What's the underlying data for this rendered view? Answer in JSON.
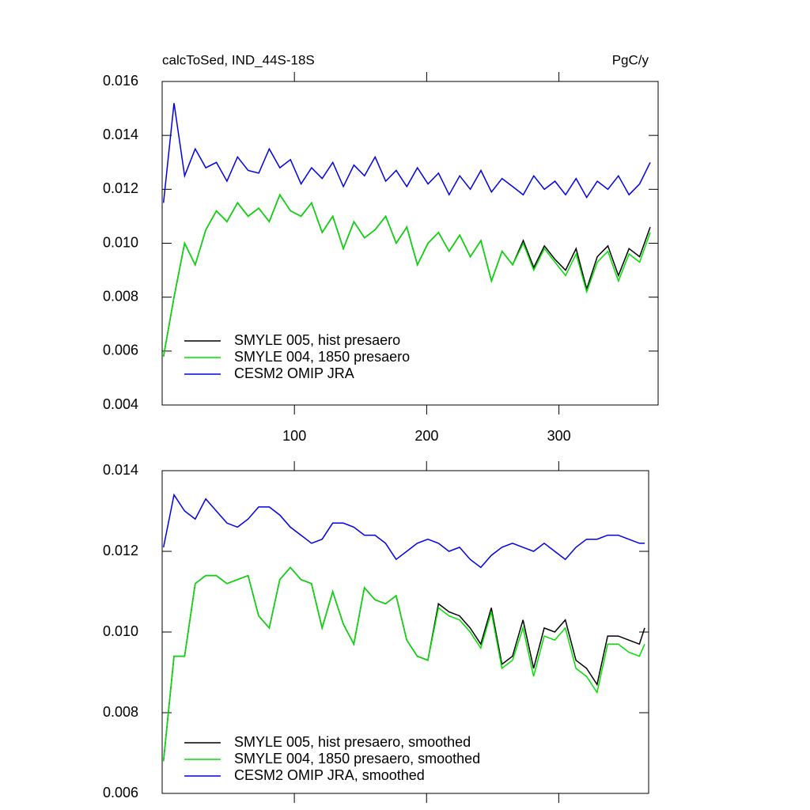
{
  "chart_data": [
    {
      "type": "line",
      "title": "calcToSed, IND_44S-18S",
      "units": "PgC/y",
      "x": [
        1,
        9,
        17,
        25,
        33,
        41,
        49,
        57,
        65,
        73,
        81,
        89,
        97,
        105,
        113,
        121,
        129,
        137,
        145,
        153,
        161,
        169,
        177,
        185,
        193,
        201,
        209,
        217,
        225,
        233,
        241,
        249,
        257,
        265,
        273,
        281,
        289,
        297,
        305,
        313,
        321,
        329,
        337,
        345,
        353,
        361,
        369
      ],
      "xlim": [
        0,
        375
      ],
      "xticks": [
        100,
        200,
        300
      ],
      "show_xtick_labels": true,
      "ylim": [
        0.004,
        0.016
      ],
      "yticks": [
        0.016,
        0.014,
        0.012,
        {
          "value": 0.01,
          "label": "0.010"
        },
        0.008,
        0.006,
        0.004
      ],
      "legend": "lower left",
      "series": [
        {
          "name": "SMYLE 005, hist presaero",
          "color": "#000000",
          "values": [
            0.0058,
            0.008,
            0.01,
            0.0092,
            0.0105,
            0.0112,
            0.0108,
            0.0115,
            0.011,
            0.0113,
            0.0108,
            0.0118,
            0.0112,
            0.011,
            0.0115,
            0.0104,
            0.011,
            0.0098,
            0.0108,
            0.0102,
            0.0105,
            0.011,
            0.01,
            0.0106,
            0.0092,
            0.01,
            0.0104,
            0.0097,
            0.0103,
            0.0095,
            0.0101,
            0.0086,
            0.0097,
            0.0092,
            0.0101,
            0.0091,
            0.0099,
            0.0094,
            0.009,
            0.0098,
            0.0083,
            0.0095,
            0.0099,
            0.0088,
            0.0098,
            0.0095,
            0.0106
          ]
        },
        {
          "name": "SMYLE 004, 1850 presaero",
          "color": "#00e000",
          "values": [
            0.0058,
            0.008,
            0.01,
            0.0092,
            0.0105,
            0.0112,
            0.0108,
            0.0115,
            0.011,
            0.0113,
            0.0108,
            0.0118,
            0.0112,
            0.011,
            0.0115,
            0.0104,
            0.011,
            0.0098,
            0.0108,
            0.0102,
            0.0105,
            0.011,
            0.01,
            0.0106,
            0.0092,
            0.01,
            0.0104,
            0.0097,
            0.0103,
            0.0095,
            0.0101,
            0.0086,
            0.0097,
            0.0092,
            0.01,
            0.009,
            0.0098,
            0.0093,
            0.0088,
            0.0096,
            0.0082,
            0.0093,
            0.0097,
            0.0086,
            0.0096,
            0.0093,
            0.0104
          ]
        },
        {
          "name": "CESM2 OMIP JRA",
          "color": "#0000e6",
          "values": [
            0.0115,
            0.0152,
            0.0125,
            0.0135,
            0.0128,
            0.013,
            0.0123,
            0.0132,
            0.0127,
            0.0126,
            0.0135,
            0.0128,
            0.0131,
            0.0122,
            0.0128,
            0.0124,
            0.013,
            0.0121,
            0.0129,
            0.0125,
            0.0132,
            0.0123,
            0.0127,
            0.0121,
            0.0128,
            0.0122,
            0.0126,
            0.0118,
            0.0125,
            0.012,
            0.0127,
            0.0119,
            0.0124,
            0.0121,
            0.0118,
            0.0125,
            0.012,
            0.0123,
            0.0118,
            0.0124,
            0.0117,
            0.0123,
            0.012,
            0.0125,
            0.0118,
            0.0122,
            0.013
          ]
        }
      ]
    },
    {
      "type": "line",
      "x": [
        1,
        9,
        17,
        25,
        33,
        41,
        49,
        57,
        65,
        73,
        81,
        89,
        97,
        105,
        113,
        121,
        129,
        137,
        145,
        153,
        161,
        169,
        177,
        185,
        193,
        201,
        209,
        217,
        225,
        233,
        241,
        249,
        257,
        265,
        273,
        281,
        289,
        297,
        305,
        313,
        321,
        329,
        337,
        345,
        353,
        361,
        365
      ],
      "xlim": [
        0,
        368
      ],
      "xticks": [
        100,
        200,
        300
      ],
      "show_xtick_labels": false,
      "ylim": [
        0.006,
        0.014
      ],
      "yticks": [
        0.014,
        0.012,
        {
          "value": 0.01,
          "label": "0.010"
        },
        0.008,
        0.006
      ],
      "legend": "lower left",
      "series": [
        {
          "name": "SMYLE 005, hist presaero, smoothed",
          "color": "#000000",
          "values": [
            0.0068,
            0.0094,
            0.0094,
            0.0112,
            0.0114,
            0.0114,
            0.0112,
            0.0113,
            0.0114,
            0.0104,
            0.0101,
            0.0113,
            0.0116,
            0.0113,
            0.0112,
            0.0101,
            0.011,
            0.0102,
            0.0097,
            0.0111,
            0.0108,
            0.0107,
            0.0109,
            0.0098,
            0.0094,
            0.0093,
            0.0107,
            0.0105,
            0.0104,
            0.0101,
            0.0097,
            0.0106,
            0.0092,
            0.0094,
            0.0103,
            0.0091,
            0.0101,
            0.01,
            0.0103,
            0.0093,
            0.0091,
            0.0087,
            0.0099,
            0.0099,
            0.0098,
            0.0097,
            0.0101
          ]
        },
        {
          "name": "SMYLE 004, 1850 presaero, smoothed",
          "color": "#00e000",
          "values": [
            0.0068,
            0.0094,
            0.0094,
            0.0112,
            0.0114,
            0.0114,
            0.0112,
            0.0113,
            0.0114,
            0.0104,
            0.0101,
            0.0113,
            0.0116,
            0.0113,
            0.0112,
            0.0101,
            0.011,
            0.0102,
            0.0097,
            0.0111,
            0.0108,
            0.0107,
            0.0109,
            0.0098,
            0.0094,
            0.0093,
            0.0106,
            0.0104,
            0.0103,
            0.01,
            0.0096,
            0.0105,
            0.0091,
            0.0093,
            0.0101,
            0.0089,
            0.0099,
            0.0098,
            0.0101,
            0.0091,
            0.0089,
            0.0085,
            0.0097,
            0.0097,
            0.0095,
            0.0094,
            0.0097
          ]
        },
        {
          "name": "CESM2 OMIP JRA, smoothed",
          "color": "#0000e6",
          "values": [
            0.0121,
            0.0134,
            0.013,
            0.0128,
            0.0133,
            0.013,
            0.0127,
            0.0126,
            0.0128,
            0.0131,
            0.0131,
            0.0129,
            0.0126,
            0.0124,
            0.0122,
            0.0123,
            0.0127,
            0.0127,
            0.0126,
            0.0124,
            0.0124,
            0.0122,
            0.0118,
            0.012,
            0.0122,
            0.0123,
            0.0122,
            0.012,
            0.0121,
            0.0118,
            0.0116,
            0.0119,
            0.0121,
            0.0122,
            0.0121,
            0.012,
            0.0122,
            0.012,
            0.0118,
            0.0121,
            0.0123,
            0.0123,
            0.0124,
            0.0124,
            0.0123,
            0.0122,
            0.0122
          ]
        }
      ]
    }
  ]
}
